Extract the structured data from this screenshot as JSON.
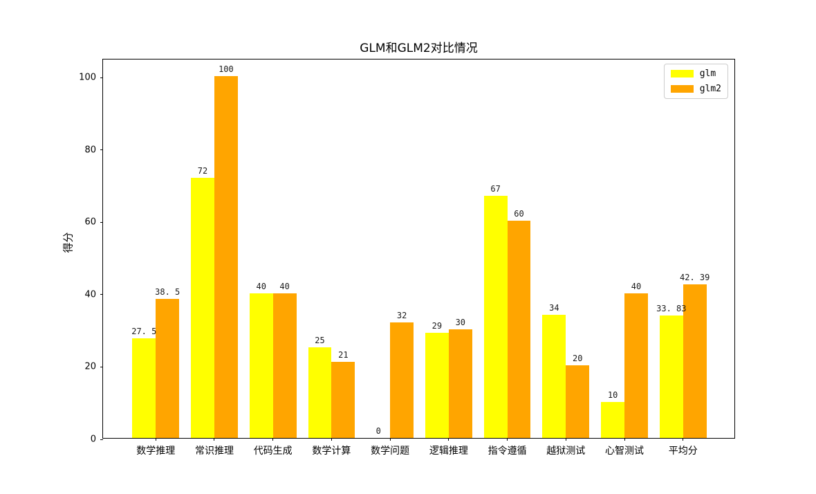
{
  "chart_data": {
    "type": "bar",
    "title": "GLM和GLM2对比情况",
    "xlabel": "",
    "ylabel": "得分",
    "categories": [
      "数学推理",
      "常识推理",
      "代码生成",
      "数学计算",
      "数学问题",
      "逻辑推理",
      "指令遵循",
      "越狱测试",
      "心智测试",
      "平均分"
    ],
    "series": [
      {
        "name": "glm",
        "color": "#ffff00",
        "values": [
          27.5,
          72,
          40,
          25,
          0,
          29,
          67,
          34,
          10,
          33.83
        ],
        "labels": [
          "27. 5",
          "72",
          "40",
          "25",
          "0",
          "29",
          "67",
          "34",
          "10",
          "33. 83"
        ]
      },
      {
        "name": "glm2",
        "color": "#ffa500",
        "values": [
          38.5,
          100,
          40,
          21,
          32,
          30,
          60,
          20,
          40,
          42.39
        ],
        "labels": [
          "38. 5",
          "100",
          "40",
          "21",
          "32",
          "30",
          "60",
          "20",
          "40",
          "42. 39"
        ]
      }
    ],
    "yticks": [
      0,
      20,
      40,
      60,
      80,
      100
    ],
    "ylim": [
      0,
      105
    ],
    "grid": false,
    "legend": {
      "position": "upper-right",
      "entries": [
        "glm",
        "glm2"
      ]
    }
  }
}
